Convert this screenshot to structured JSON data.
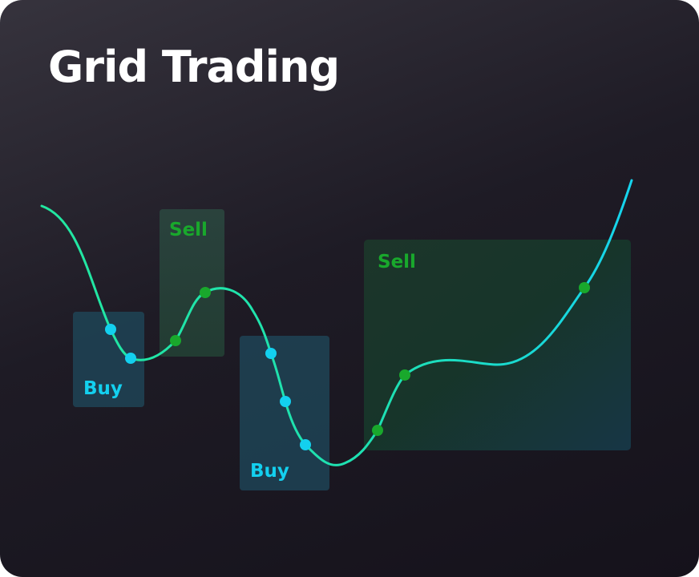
{
  "title": "Grid Trading",
  "labels": {
    "buy": "Buy",
    "sell": "Sell"
  },
  "colors": {
    "buy": "#13d0ef",
    "sell": "#19a82c",
    "line_start": "#22e7a0",
    "line_end": "#16d4ee"
  }
}
